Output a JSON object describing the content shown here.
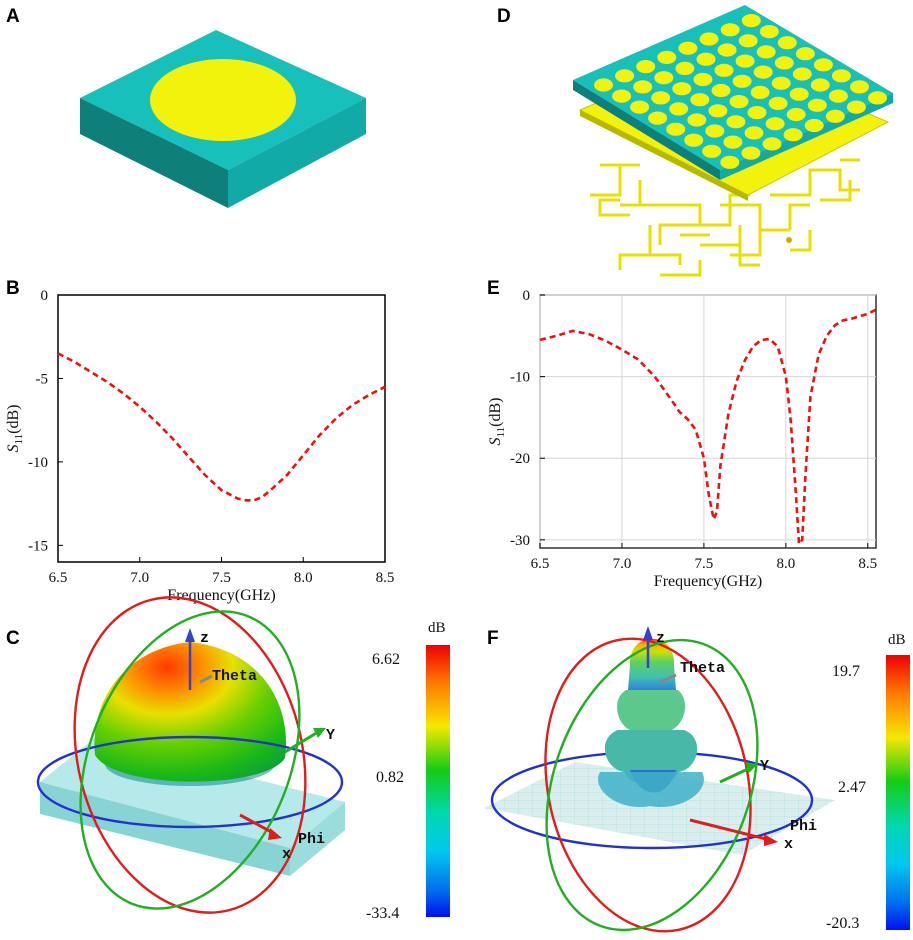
{
  "panels": {
    "a": "A",
    "b": "B",
    "c": "C",
    "d": "D",
    "e": "E",
    "f": "F"
  },
  "colors": {
    "substrate": "#14b8b4",
    "patch": "#f2f20c",
    "curve": "#ee1111",
    "axis_z": "#3344cc",
    "ring_red": "#e21b1b",
    "ring_green": "#20b020",
    "ring_blue": "#2233cc"
  },
  "chart_data": [
    {
      "id": "B",
      "type": "line",
      "title": "",
      "xlabel": "Frequency(GHz)",
      "ylabel_main": "S",
      "ylabel_sub": "11",
      "ylabel_unit": "(dB)",
      "xlim": [
        6.5,
        8.5
      ],
      "ylim": [
        -16,
        0
      ],
      "xticks": [
        "6.5",
        "7.0",
        "7.5",
        "8.0",
        "8.5"
      ],
      "yticks": [
        "0",
        "-5",
        "-10",
        "-15"
      ],
      "grid": false,
      "series": [
        {
          "name": "S11",
          "style": "dashed",
          "x": [
            6.5,
            6.6,
            6.7,
            6.8,
            6.9,
            7.0,
            7.1,
            7.2,
            7.3,
            7.4,
            7.5,
            7.6,
            7.65,
            7.7,
            7.75,
            7.8,
            7.9,
            8.0,
            8.1,
            8.2,
            8.3,
            8.4,
            8.5
          ],
          "y": [
            -3.5,
            -4.0,
            -4.6,
            -5.2,
            -5.9,
            -6.7,
            -7.6,
            -8.6,
            -9.7,
            -10.8,
            -11.7,
            -12.2,
            -12.3,
            -12.3,
            -12.1,
            -11.7,
            -10.8,
            -9.6,
            -8.4,
            -7.4,
            -6.6,
            -6.0,
            -5.5
          ]
        }
      ]
    },
    {
      "id": "E",
      "type": "line",
      "title": "",
      "xlabel": "Frequency(GHz)",
      "ylabel_main": "S",
      "ylabel_sub": "11",
      "ylabel_unit": "(dB)",
      "xlim": [
        6.5,
        8.55
      ],
      "ylim": [
        -31,
        0
      ],
      "xticks": [
        "6.5",
        "7.0",
        "7.5",
        "8.0",
        "8.5"
      ],
      "yticks": [
        "0",
        "-10",
        "-20",
        "-30"
      ],
      "grid": true,
      "series": [
        {
          "name": "S11",
          "style": "dashed",
          "x": [
            6.5,
            6.6,
            6.7,
            6.8,
            6.9,
            7.0,
            7.1,
            7.2,
            7.3,
            7.35,
            7.4,
            7.45,
            7.5,
            7.53,
            7.56,
            7.58,
            7.6,
            7.65,
            7.7,
            7.75,
            7.8,
            7.85,
            7.9,
            7.95,
            8.0,
            8.03,
            8.06,
            8.08,
            8.1,
            8.12,
            8.15,
            8.2,
            8.25,
            8.3,
            8.35,
            8.4,
            8.5,
            8.55
          ],
          "y": [
            -5.5,
            -5.0,
            -4.4,
            -4.8,
            -5.6,
            -6.7,
            -7.9,
            -10.0,
            -12.8,
            -14.3,
            -15.2,
            -16.5,
            -20.0,
            -24.5,
            -27.5,
            -26.5,
            -21.0,
            -14.5,
            -10.5,
            -8.0,
            -6.3,
            -5.5,
            -5.4,
            -6.3,
            -10.0,
            -15.5,
            -24.0,
            -30.5,
            -30.0,
            -22.0,
            -12.5,
            -7.3,
            -5.0,
            -3.7,
            -3.1,
            -2.9,
            -2.3,
            -1.8
          ]
        }
      ]
    },
    {
      "id": "C",
      "type": "heatmap",
      "title": "dB",
      "colorbar_ticks": [
        "6.62",
        "0.82",
        "-33.4"
      ],
      "colorbar_values": [
        6.62,
        0.82,
        -33.4
      ],
      "axis_labels": {
        "z": "z",
        "theta": "Theta",
        "y": "Y",
        "phi": "Phi",
        "x": "x"
      }
    },
    {
      "id": "F",
      "type": "heatmap",
      "title": "dB",
      "colorbar_ticks": [
        "19.7",
        "2.47",
        "-20.3"
      ],
      "colorbar_values": [
        19.7,
        2.47,
        -20.3
      ],
      "axis_labels": {
        "z": "z",
        "theta": "Theta",
        "y": "Y",
        "phi": "Phi",
        "x": "x"
      }
    }
  ]
}
